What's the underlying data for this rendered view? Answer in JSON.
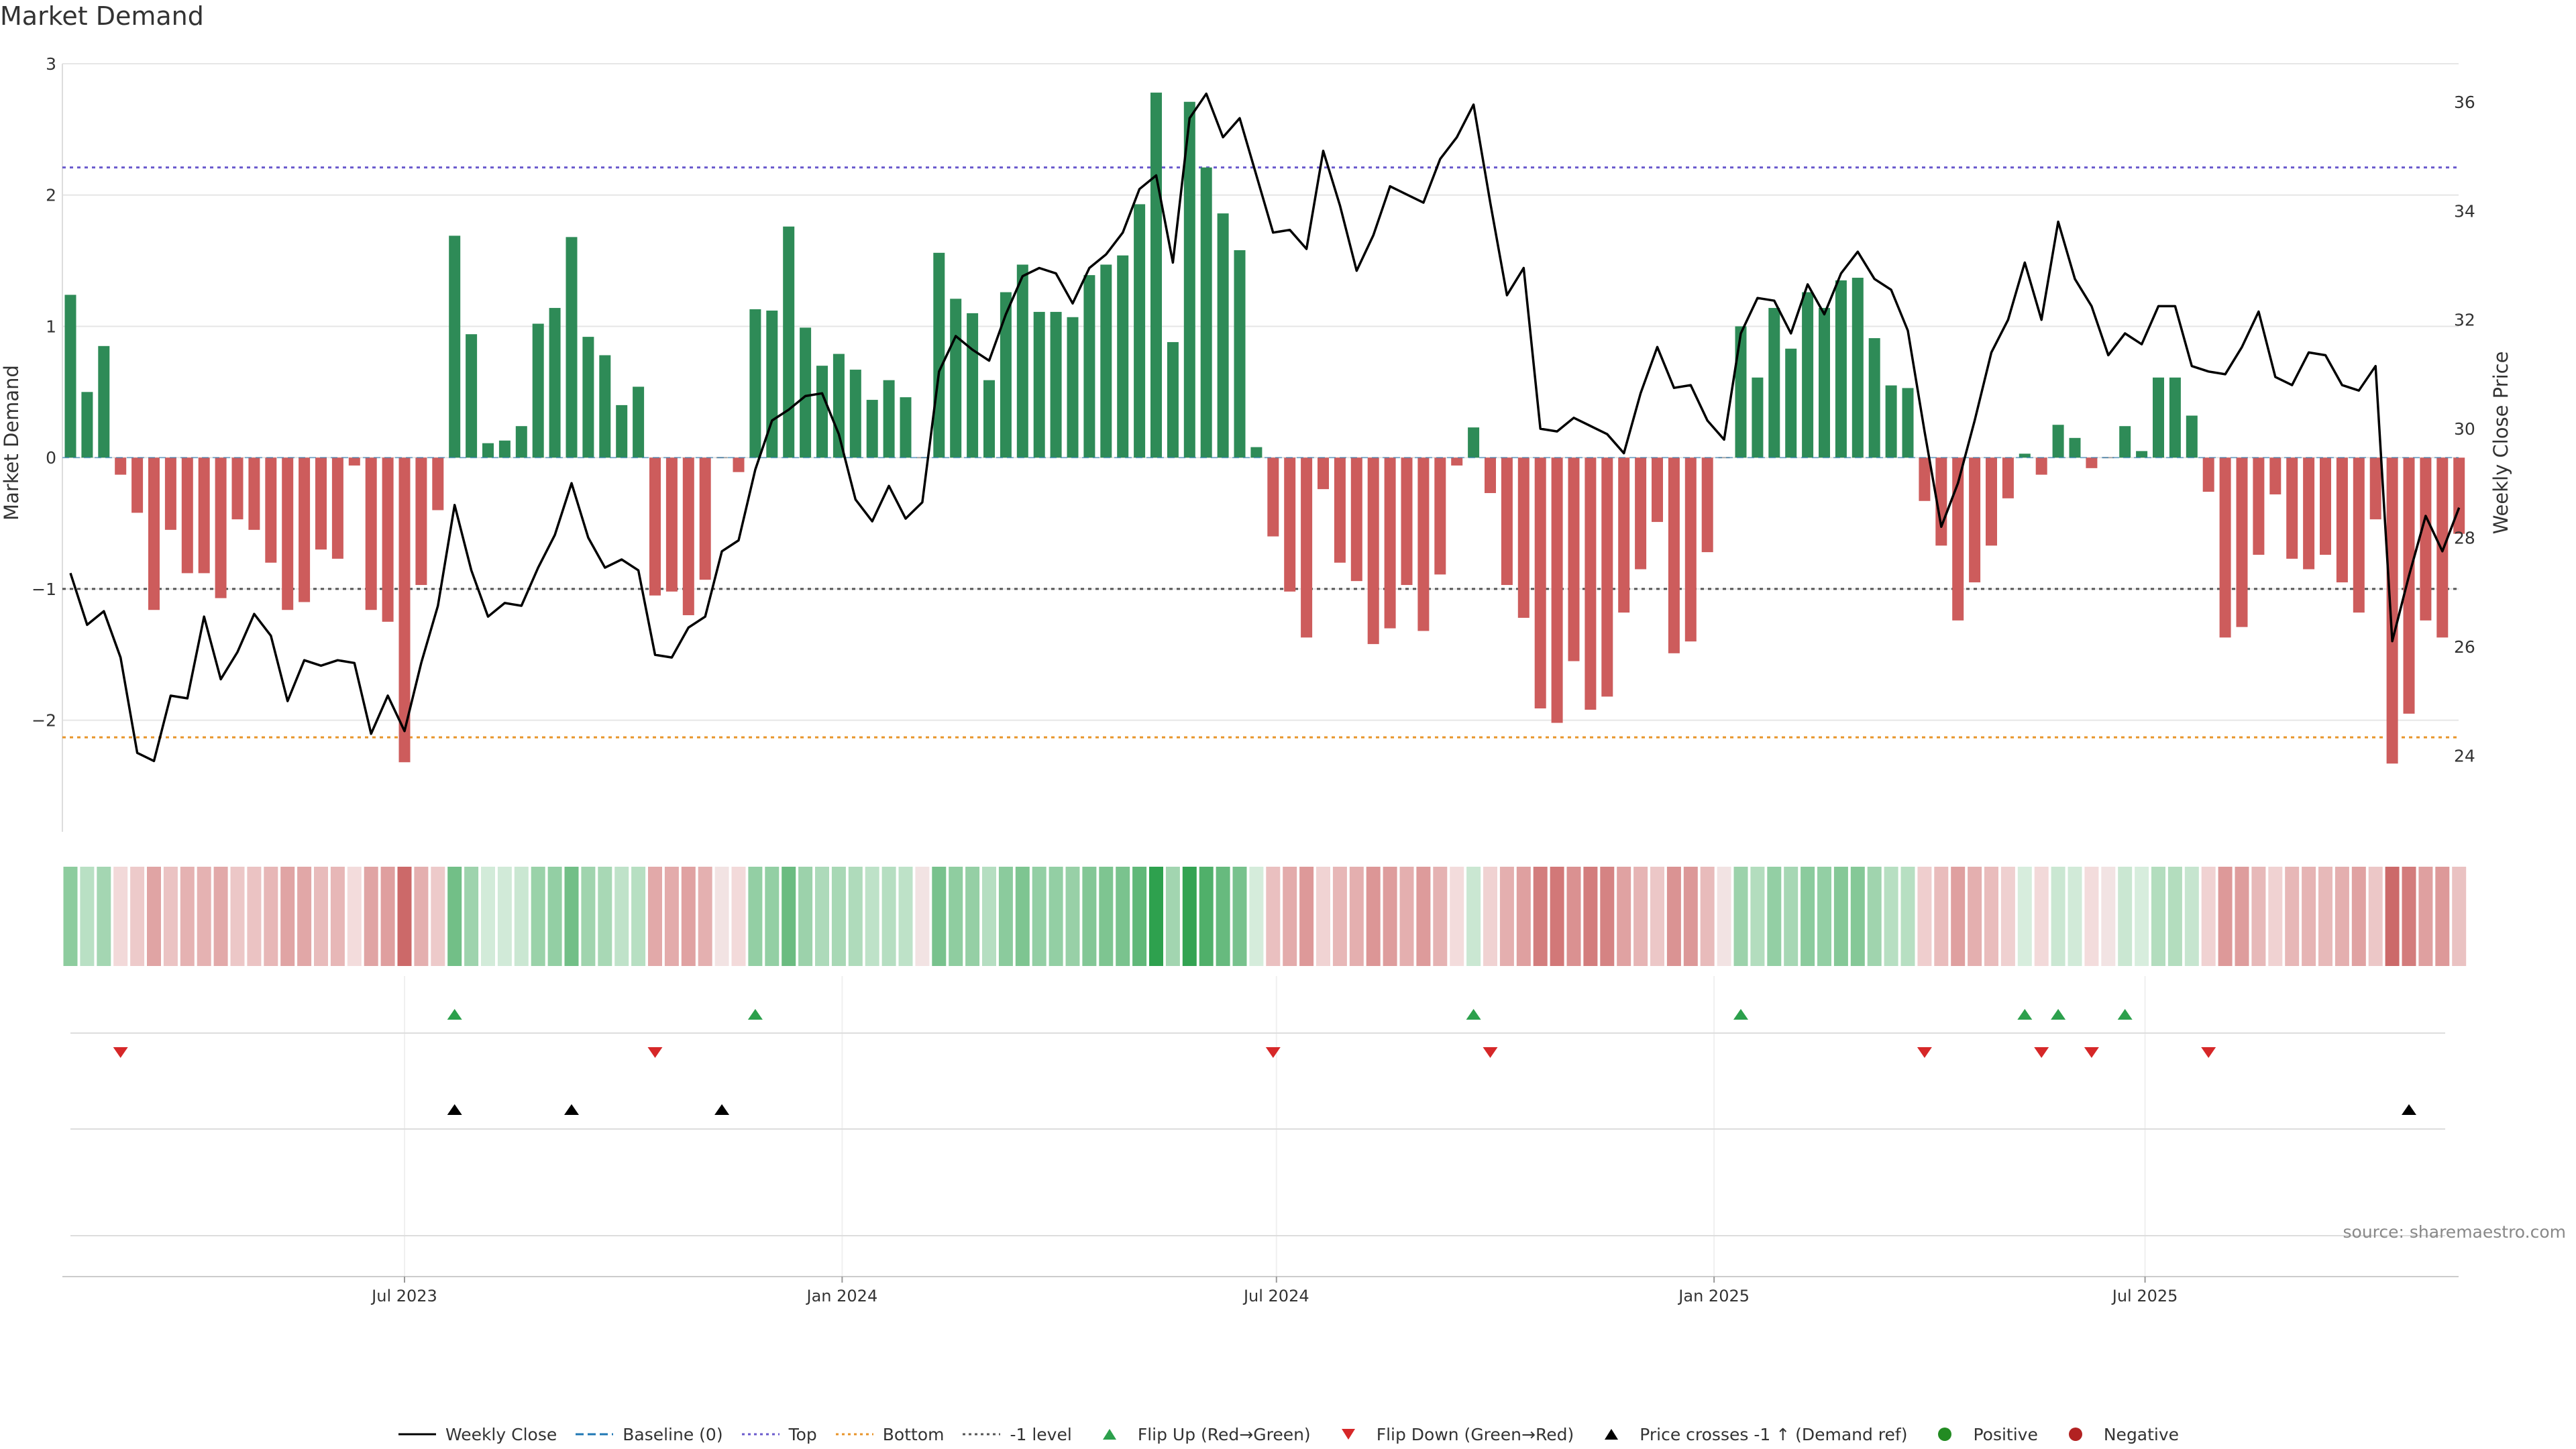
{
  "chart_data": {
    "type": "bar+line",
    "title": "Market Demand",
    "ylabel_left": "Market Demand",
    "ylabel_right": "Weekly Close Price",
    "source": "source: sharemaestro.com",
    "ylim_left": [
      -2.85,
      3.0
    ],
    "yticks_left": [
      3,
      2,
      1,
      0,
      -1,
      -2
    ],
    "yticks_left_labels": [
      "3",
      "2",
      "1",
      "0",
      "−1",
      "−2"
    ],
    "ylim_right": [
      22.6,
      36.7
    ],
    "yticks_right": [
      36,
      34,
      32,
      30,
      28,
      26,
      24
    ],
    "yticks_right_labels": [
      "36",
      "34",
      "32",
      "30",
      "28",
      "26",
      "24"
    ],
    "xticks": [
      {
        "label": "Jul 2023",
        "index": 20
      },
      {
        "label": "Jan 2024",
        "index": 46.2
      },
      {
        "label": "Jul 2024",
        "index": 72.2
      },
      {
        "label": "Jan 2025",
        "index": 98.4
      },
      {
        "label": "Jul 2025",
        "index": 124.2
      }
    ],
    "reference_lines": [
      {
        "name": "Top",
        "value": 2.21,
        "color": "#6a5acd",
        "style": "dotted"
      },
      {
        "name": "-1 level",
        "value": -1.0,
        "color": "#555555",
        "style": "dotted"
      },
      {
        "name": "Bottom",
        "value": -2.13,
        "color": "#e8952a",
        "style": "dotted"
      }
    ],
    "demand": [
      1.24,
      0.5,
      0.85,
      -0.13,
      -0.42,
      -1.16,
      -0.55,
      -0.88,
      -0.88,
      -1.07,
      -0.47,
      -0.55,
      -0.8,
      -1.16,
      -1.1,
      -0.7,
      -0.77,
      -0.06,
      -1.16,
      -1.25,
      -2.32,
      -0.97,
      -0.4,
      1.69,
      0.94,
      0.11,
      0.13,
      0.24,
      1.02,
      1.14,
      1.68,
      0.92,
      0.78,
      0.4,
      0.54,
      -1.05,
      -1.02,
      -1.2,
      -0.93,
      0,
      -0.11,
      1.13,
      1.12,
      1.76,
      0.99,
      0.7,
      0.79,
      0.67,
      0.44,
      0.59,
      0.46,
      0,
      1.56,
      1.21,
      1.1,
      0.59,
      1.26,
      1.47,
      1.11,
      1.11,
      1.07,
      1.39,
      1.47,
      1.54,
      1.93,
      2.78,
      0.88,
      2.71,
      2.21,
      1.86,
      1.58,
      0.08,
      -0.6,
      -1.02,
      -1.37,
      -0.24,
      -0.8,
      -0.94,
      -1.42,
      -1.3,
      -0.97,
      -1.32,
      -0.89,
      -0.06,
      0.23,
      -0.27,
      -0.97,
      -1.22,
      -1.91,
      -2.02,
      -1.55,
      -1.92,
      -1.82,
      -1.18,
      -0.85,
      -0.49,
      -1.49,
      -1.4,
      -0.72,
      0,
      1.0,
      0.61,
      1.14,
      0.83,
      1.26,
      1.14,
      1.35,
      1.37,
      0.91,
      0.55,
      0.53,
      -0.33,
      -0.67,
      -1.24,
      -0.95,
      -0.67,
      -0.31,
      0.03,
      -0.13,
      0.25,
      0.15,
      -0.08,
      0,
      0.24,
      0.05,
      0.61,
      0.61,
      0.32,
      -0.26,
      -1.37,
      -1.29,
      -0.74,
      -0.28,
      -0.77,
      -0.85,
      -0.74,
      -0.95,
      -1.18,
      -0.47,
      -2.33,
      -1.95,
      -1.24,
      -1.37,
      -0.58
    ],
    "weekly_close": [
      27.35,
      26.4,
      26.65,
      25.8,
      24.05,
      23.9,
      25.1,
      25.05,
      26.55,
      25.4,
      25.9,
      26.6,
      26.2,
      25.0,
      25.75,
      25.65,
      25.75,
      25.7,
      24.4,
      25.1,
      24.45,
      25.7,
      26.75,
      28.6,
      27.4,
      26.55,
      26.8,
      26.75,
      27.45,
      28.05,
      29.0,
      28.0,
      27.45,
      27.6,
      27.4,
      25.85,
      25.8,
      26.35,
      26.55,
      27.75,
      27.95,
      29.25,
      30.15,
      30.35,
      30.6,
      30.65,
      29.9,
      28.7,
      28.3,
      28.95,
      28.35,
      28.65,
      31.05,
      31.7,
      31.45,
      31.25,
      32.1,
      32.8,
      32.95,
      32.85,
      32.3,
      32.95,
      33.2,
      33.6,
      34.4,
      34.65,
      33.05,
      35.7,
      36.15,
      35.35,
      35.7,
      34.65,
      33.6,
      33.65,
      33.3,
      35.1,
      34.1,
      32.9,
      33.55,
      34.45,
      34.3,
      34.15,
      34.95,
      35.35,
      35.95,
      34.15,
      32.45,
      32.95,
      30.0,
      29.95,
      30.2,
      30.05,
      29.9,
      29.55,
      30.65,
      31.5,
      30.75,
      30.8,
      30.15,
      29.8,
      31.75,
      32.4,
      32.35,
      31.75,
      32.65,
      32.1,
      32.85,
      33.25,
      32.75,
      32.55,
      31.8,
      29.95,
      28.2,
      29.0,
      30.15,
      31.4,
      32.0,
      33.05,
      32.0,
      33.8,
      32.75,
      32.25,
      31.35,
      31.75,
      31.55,
      32.25,
      32.25,
      31.15,
      31.05,
      31.0,
      31.5,
      32.15,
      30.95,
      30.8,
      31.4,
      31.35,
      30.8,
      30.7,
      31.15,
      26.1,
      27.3,
      28.4,
      27.75,
      28.55
    ],
    "flip_up_indices": [
      23,
      41,
      84,
      100,
      117,
      119,
      123
    ],
    "flip_down_indices": [
      3,
      35,
      72,
      85,
      111,
      118,
      121,
      128
    ],
    "price_cross_indices": [
      23,
      30,
      39,
      140
    ],
    "legend": [
      {
        "label": "Weekly Close",
        "marker": "line-solid",
        "color": "#000000"
      },
      {
        "label": "Baseline (0)",
        "marker": "line-dashed",
        "color": "#1f77b4"
      },
      {
        "label": "Top",
        "marker": "line-dotted",
        "color": "#6a5acd"
      },
      {
        "label": "Bottom",
        "marker": "line-dotted",
        "color": "#e8952a"
      },
      {
        "label": "-1 level",
        "marker": "line-dotted",
        "color": "#555555"
      },
      {
        "label": "Flip Up (Red→Green)",
        "marker": "triangle-up",
        "color": "#2ca04c"
      },
      {
        "label": "Flip Down (Green→Red)",
        "marker": "triangle-down",
        "color": "#d62728"
      },
      {
        "label": "Price crosses -1 ↑ (Demand ref)",
        "marker": "triangle-up",
        "color": "#000000"
      },
      {
        "label": "Positive",
        "marker": "circle",
        "color": "#228b22"
      },
      {
        "label": "Negative",
        "marker": "circle",
        "color": "#b22222"
      }
    ],
    "colors": {
      "positive_bar": "#2e8b57",
      "negative_bar": "#cd5c5c",
      "price_line": "#000000",
      "flip_up": "#2ca04c",
      "flip_down": "#d62728",
      "cross": "#000000",
      "grid": "#e6e6e6"
    }
  }
}
